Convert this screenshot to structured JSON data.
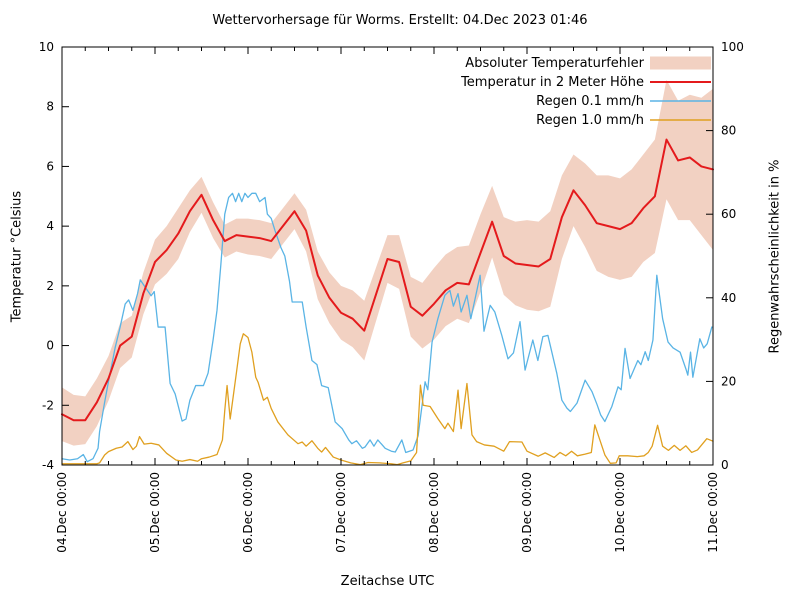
{
  "title": "Wettervorhersage für Worms. Erstellt: 04.Dec 2023 01:46",
  "axes": {
    "x_label": "Zeitachse UTC",
    "y_left_label": "Temperatur °Celsius",
    "y_right_label": "Regenwahrscheinlichkeit in %",
    "y_left_ticks": [
      -4,
      -2,
      0,
      2,
      4,
      6,
      8,
      10
    ],
    "y_right_ticks": [
      0,
      20,
      40,
      60,
      80,
      100
    ],
    "x_ticks": [
      {
        "hour": 0,
        "label": "04.Dec 00:00"
      },
      {
        "hour": 24,
        "label": "05.Dec 00:00"
      },
      {
        "hour": 48,
        "label": "06.Dec 00:00"
      },
      {
        "hour": 72,
        "label": "07.Dec 00:00"
      },
      {
        "hour": 96,
        "label": "08.Dec 00:00"
      },
      {
        "hour": 120,
        "label": "09.Dec 00:00"
      },
      {
        "hour": 144,
        "label": "10.Dec 00:00"
      },
      {
        "hour": 168,
        "label": "11.Dec 00:00"
      }
    ],
    "x_minor_tick_hours": 6
  },
  "legend": [
    {
      "key": "band",
      "label": "Absoluter Temperaturfehler",
      "swatch": "area"
    },
    {
      "key": "temp",
      "label": "Temperatur in 2 Meter Höhe",
      "swatch": "line"
    },
    {
      "key": "rain01",
      "label": "Regen 0.1 mm/h",
      "swatch": "line"
    },
    {
      "key": "rain10",
      "label": "Regen 1.0 mm/h",
      "swatch": "line"
    }
  ],
  "colors": {
    "band": "#f2d1c2",
    "temp": "#e41a1c",
    "rain01": "#5ab4e5",
    "rain10": "#e0a020",
    "axis": "#000000"
  },
  "chart_data": {
    "type": "line",
    "x_unit": "hours since 04.Dec 00:00 UTC",
    "x_range": [
      0,
      168
    ],
    "y_left_range": [
      -4,
      10
    ],
    "y_right_range": [
      0,
      100
    ],
    "grid": false,
    "legend_position": "top-right-inside",
    "temperature_c": {
      "hours_step": 3,
      "values": [
        -2.3,
        -2.5,
        -2.5,
        -1.9,
        -1.1,
        0.0,
        0.3,
        1.75,
        2.8,
        3.2,
        3.75,
        4.5,
        5.05,
        4.2,
        3.5,
        3.7,
        3.65,
        3.6,
        3.5,
        4.0,
        4.5,
        3.85,
        2.35,
        1.6,
        1.1,
        0.9,
        0.5,
        1.7,
        2.9,
        2.8,
        1.3,
        1.0,
        1.4,
        1.85,
        2.1,
        2.05,
        3.1,
        4.15,
        3.0,
        2.75,
        2.7,
        2.65,
        2.9,
        4.3,
        5.2,
        4.7,
        4.1,
        4.0,
        3.9,
        4.1,
        4.6,
        5.0,
        6.9,
        6.2,
        6.3,
        6.0,
        5.9
      ]
    },
    "temperature_error_c": {
      "hours_step": 3,
      "values": [
        0.9,
        0.85,
        0.8,
        0.8,
        0.75,
        0.75,
        0.7,
        0.7,
        0.75,
        0.8,
        0.85,
        0.7,
        0.6,
        0.6,
        0.55,
        0.55,
        0.6,
        0.6,
        0.6,
        0.6,
        0.6,
        0.7,
        0.8,
        0.85,
        0.9,
        0.95,
        1.0,
        0.9,
        0.8,
        0.9,
        1.0,
        1.1,
        1.2,
        1.2,
        1.2,
        1.3,
        1.3,
        1.2,
        1.3,
        1.4,
        1.5,
        1.5,
        1.6,
        1.4,
        1.2,
        1.4,
        1.6,
        1.7,
        1.7,
        1.8,
        1.8,
        1.9,
        2.0,
        2.0,
        2.1,
        2.3,
        2.7
      ]
    },
    "rain_01mm_prob_pct": {
      "points": [
        [
          0,
          1.5
        ],
        [
          2,
          1.2
        ],
        [
          4,
          1.5
        ],
        [
          5.5,
          2.5
        ],
        [
          6.5,
          0.8
        ],
        [
          8,
          1.5
        ],
        [
          9.3,
          4
        ],
        [
          9.7,
          8
        ],
        [
          11,
          15
        ],
        [
          12,
          20
        ],
        [
          13.7,
          28
        ],
        [
          15,
          33
        ],
        [
          16.3,
          38.5
        ],
        [
          17.2,
          39.5
        ],
        [
          18.3,
          37
        ],
        [
          19.5,
          41
        ],
        [
          20.2,
          44.3
        ],
        [
          21.5,
          42.5
        ],
        [
          23,
          40.5
        ],
        [
          23.8,
          41.5
        ],
        [
          24.8,
          33
        ],
        [
          26.6,
          33
        ],
        [
          27.9,
          19.5
        ],
        [
          29.2,
          17
        ],
        [
          31,
          10.5
        ],
        [
          32,
          11
        ],
        [
          33,
          15.5
        ],
        [
          34.5,
          19
        ],
        [
          36.5,
          19
        ],
        [
          37.7,
          22
        ],
        [
          39,
          30
        ],
        [
          40,
          37
        ],
        [
          41,
          48
        ],
        [
          42,
          60
        ],
        [
          43,
          64
        ],
        [
          44,
          65
        ],
        [
          44.8,
          63
        ],
        [
          45.6,
          65
        ],
        [
          46.4,
          63
        ],
        [
          47.2,
          65
        ],
        [
          48,
          64
        ],
        [
          49,
          65
        ],
        [
          50,
          65
        ],
        [
          51,
          63
        ],
        [
          52.4,
          64
        ],
        [
          53,
          60
        ],
        [
          54,
          59
        ],
        [
          55,
          56
        ],
        [
          56.5,
          52
        ],
        [
          57.5,
          50
        ],
        [
          58.7,
          44
        ],
        [
          59.4,
          39
        ],
        [
          62,
          39
        ],
        [
          63,
          33
        ],
        [
          64.5,
          25
        ],
        [
          65.8,
          24
        ],
        [
          67,
          19
        ],
        [
          68.7,
          18.5
        ],
        [
          70.5,
          10.3
        ],
        [
          72.3,
          8.7
        ],
        [
          74,
          6
        ],
        [
          74.8,
          5.1
        ],
        [
          76,
          5.8
        ],
        [
          77.5,
          4
        ],
        [
          78.2,
          4.3
        ],
        [
          79.5,
          6
        ],
        [
          80.5,
          4.5
        ],
        [
          81.5,
          6
        ],
        [
          83.4,
          4
        ],
        [
          85,
          3.3
        ],
        [
          86,
          3.1
        ],
        [
          87.7,
          6
        ],
        [
          88.7,
          3
        ],
        [
          90.6,
          3.6
        ],
        [
          91.9,
          7
        ],
        [
          93.7,
          19.9
        ],
        [
          94.4,
          18
        ],
        [
          95.5,
          29.4
        ],
        [
          97,
          35
        ],
        [
          98.8,
          40.6
        ],
        [
          100.1,
          41.8
        ],
        [
          101,
          38
        ],
        [
          102.2,
          41
        ],
        [
          103,
          36.6
        ],
        [
          104.5,
          40.6
        ],
        [
          105.5,
          35
        ],
        [
          107.9,
          45.4
        ],
        [
          108.9,
          32
        ],
        [
          110.5,
          38.2
        ],
        [
          111.7,
          36.6
        ],
        [
          113.5,
          31
        ],
        [
          115.1,
          25.4
        ],
        [
          116.5,
          26.8
        ],
        [
          118.2,
          34.3
        ],
        [
          119.5,
          22.7
        ],
        [
          121.5,
          29.9
        ],
        [
          122.8,
          25
        ],
        [
          124.1,
          30.7
        ],
        [
          125.4,
          31
        ],
        [
          127.7,
          21.9
        ],
        [
          129,
          15.5
        ],
        [
          130.3,
          13.6
        ],
        [
          131.2,
          12.8
        ],
        [
          132.9,
          14.8
        ],
        [
          135,
          20.3
        ],
        [
          136.8,
          17.5
        ],
        [
          138.1,
          14.4
        ],
        [
          139,
          12
        ],
        [
          140.1,
          10.4
        ],
        [
          141.9,
          14
        ],
        [
          143.5,
          18.7
        ],
        [
          144.3,
          18
        ],
        [
          145.3,
          27.9
        ],
        [
          146.6,
          20.7
        ],
        [
          147.9,
          23.5
        ],
        [
          148.6,
          25
        ],
        [
          149.4,
          24
        ],
        [
          150.5,
          27.1
        ],
        [
          151.3,
          25
        ],
        [
          152.5,
          29.9
        ],
        [
          153.5,
          45.4
        ],
        [
          155,
          35
        ],
        [
          156.4,
          29.4
        ],
        [
          157.7,
          28
        ],
        [
          159.5,
          27
        ],
        [
          161,
          23
        ],
        [
          161.5,
          21.5
        ],
        [
          162.2,
          27
        ],
        [
          162.8,
          21
        ],
        [
          164.6,
          30.2
        ],
        [
          165.6,
          28
        ],
        [
          166.5,
          29
        ],
        [
          167.7,
          33
        ]
      ]
    },
    "rain_10mm_prob_pct": {
      "points": [
        [
          0,
          0.3
        ],
        [
          3,
          0.3
        ],
        [
          6,
          0.3
        ],
        [
          9,
          0.3
        ],
        [
          9.7,
          0.5
        ],
        [
          11,
          2.4
        ],
        [
          12,
          3.2
        ],
        [
          14,
          4
        ],
        [
          15.5,
          4.3
        ],
        [
          17,
          5.6
        ],
        [
          18.3,
          3.7
        ],
        [
          19.2,
          4.5
        ],
        [
          20,
          6.8
        ],
        [
          21.2,
          5
        ],
        [
          23,
          5.2
        ],
        [
          25,
          4.8
        ],
        [
          27,
          2.8
        ],
        [
          29.4,
          1.2
        ],
        [
          31,
          0.9
        ],
        [
          33,
          1.3
        ],
        [
          35,
          0.9
        ],
        [
          36,
          1.5
        ],
        [
          38,
          1.9
        ],
        [
          40,
          2.5
        ],
        [
          41.4,
          6
        ],
        [
          42,
          13
        ],
        [
          42.6,
          19
        ],
        [
          43.4,
          11
        ],
        [
          45,
          22
        ],
        [
          46,
          29
        ],
        [
          46.8,
          31.4
        ],
        [
          48,
          30.5
        ],
        [
          49,
          27
        ],
        [
          50,
          21
        ],
        [
          50.6,
          19.8
        ],
        [
          52,
          15.5
        ],
        [
          53,
          16.2
        ],
        [
          54,
          13.5
        ],
        [
          55.7,
          10.3
        ],
        [
          58.3,
          7.2
        ],
        [
          60.9,
          5.1
        ],
        [
          62,
          5.5
        ],
        [
          63,
          4.5
        ],
        [
          64.5,
          5.8
        ],
        [
          66,
          4
        ],
        [
          67,
          3.1
        ],
        [
          68,
          4.2
        ],
        [
          70,
          1.9
        ],
        [
          72,
          1.2
        ],
        [
          74.5,
          0.5
        ],
        [
          77,
          0.1
        ],
        [
          79,
          0.6
        ],
        [
          82,
          0.5
        ],
        [
          85,
          0.3
        ],
        [
          86.5,
          0.1
        ],
        [
          88,
          0.5
        ],
        [
          90,
          1
        ],
        [
          91.5,
          3
        ],
        [
          92.5,
          19.1
        ],
        [
          93.2,
          14.3
        ],
        [
          95,
          14
        ],
        [
          97,
          11.1
        ],
        [
          98.8,
          8.7
        ],
        [
          99.6,
          10
        ],
        [
          101,
          8
        ],
        [
          102.2,
          17.9
        ],
        [
          103,
          8.7
        ],
        [
          104.5,
          19.5
        ],
        [
          105.8,
          7.2
        ],
        [
          107,
          5.6
        ],
        [
          109,
          4.8
        ],
        [
          111.5,
          4.5
        ],
        [
          114,
          3.3
        ],
        [
          115.5,
          5.6
        ],
        [
          118.7,
          5.5
        ],
        [
          120,
          3.3
        ],
        [
          122.9,
          2.1
        ],
        [
          124.7,
          2.9
        ],
        [
          127,
          1.8
        ],
        [
          128.5,
          3
        ],
        [
          130,
          2.2
        ],
        [
          131.5,
          3.3
        ],
        [
          133,
          2.2
        ],
        [
          135,
          2.6
        ],
        [
          136.6,
          3
        ],
        [
          137.5,
          9.6
        ],
        [
          138.8,
          6
        ],
        [
          140.1,
          2.4
        ],
        [
          141.5,
          0.4
        ],
        [
          143,
          0.5
        ],
        [
          143.8,
          2.2
        ],
        [
          146,
          2.2
        ],
        [
          148.5,
          2
        ],
        [
          150.2,
          2.2
        ],
        [
          151.3,
          3
        ],
        [
          152.3,
          4.5
        ],
        [
          153.7,
          9.5
        ],
        [
          155,
          4.5
        ],
        [
          156.5,
          3.5
        ],
        [
          158,
          4.7
        ],
        [
          159.5,
          3.5
        ],
        [
          161,
          4.6
        ],
        [
          162.5,
          3
        ],
        [
          164,
          3.6
        ],
        [
          166.4,
          6.3
        ],
        [
          168,
          5.7
        ]
      ]
    }
  }
}
